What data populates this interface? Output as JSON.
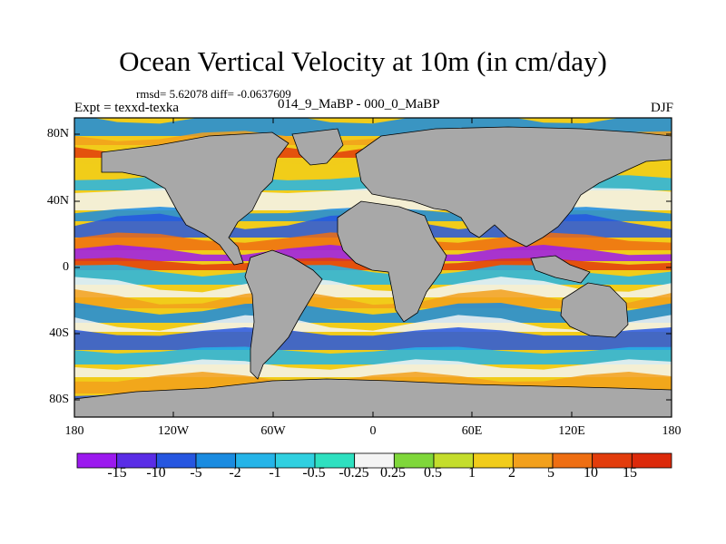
{
  "title": "Ocean Vertical Velocity at 10m (in cm/day)",
  "stats": "rmsd= 5.62078 diff= -0.0637609",
  "experiment": "Expt = texxd-texka",
  "period": "014_9_MaBP - 000_0_MaBP",
  "season": "DJF",
  "lat_labels": [
    "80N",
    "40N",
    "0",
    "40S",
    "80S"
  ],
  "lon_labels": [
    "180",
    "120W",
    "60W",
    "0",
    "60E",
    "120E",
    "180"
  ],
  "colorbar": {
    "labels": [
      "-15",
      "-10",
      "-5",
      "-2",
      "-1",
      "-0.5",
      "-0.25",
      "0.25",
      "0.5",
      "1",
      "2",
      "5",
      "10",
      "15"
    ],
    "colors": [
      "#9b19ee",
      "#5a2de6",
      "#2656e0",
      "#1a8be0",
      "#25b4e8",
      "#30d0e0",
      "#2ee0c0",
      "#f4f4f4",
      "#7fd73a",
      "#c4dd2c",
      "#f1cc1a",
      "#f2a01c",
      "#ee6e12",
      "#e23c0c",
      "#dc2a0b"
    ]
  },
  "land_color": "#a8a8a8"
}
